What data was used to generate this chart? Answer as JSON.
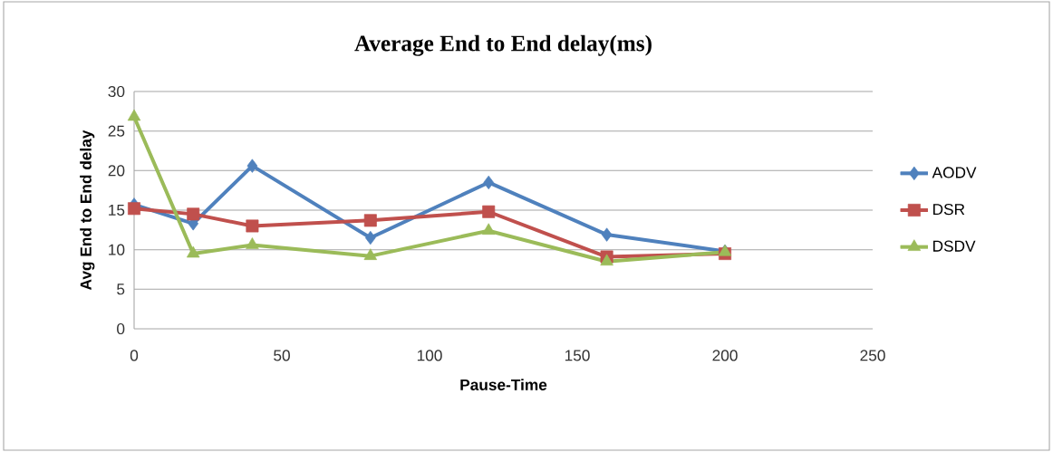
{
  "chart_data": {
    "type": "line",
    "title": "Average End to End delay(ms)",
    "xlabel": "Pause-Time",
    "ylabel": "Avg End to End delay",
    "x": [
      0,
      20,
      40,
      80,
      120,
      160,
      200
    ],
    "series": [
      {
        "name": "AODV",
        "color": "#4f81bd",
        "marker": "diamond",
        "values": [
          15.7,
          13.3,
          20.6,
          11.5,
          18.5,
          11.9,
          9.8
        ]
      },
      {
        "name": "DSR",
        "color": "#c0504d",
        "marker": "square",
        "values": [
          15.2,
          14.5,
          13.0,
          13.7,
          14.8,
          9.1,
          9.5
        ]
      },
      {
        "name": "DSDV",
        "color": "#9bbb59",
        "marker": "triangle",
        "values": [
          26.8,
          9.5,
          10.6,
          9.2,
          12.4,
          8.5,
          9.7
        ]
      }
    ],
    "xlim": [
      0,
      250
    ],
    "xticks": [
      0,
      50,
      100,
      150,
      200,
      250
    ],
    "ylim": [
      0,
      30
    ],
    "yticks": [
      0,
      5,
      10,
      15,
      20,
      25,
      30
    ],
    "grid": "y",
    "legend": "right",
    "line_style": "solid"
  }
}
